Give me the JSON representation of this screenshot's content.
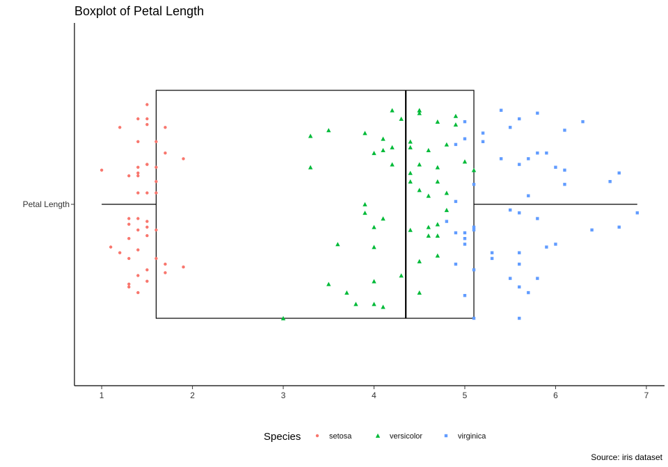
{
  "chart_data": {
    "type": "boxplot",
    "title": "Boxplot of Petal Length",
    "caption": "Source: iris dataset",
    "orientation": "horizontal",
    "y_category": "Petal Length",
    "xlabel": "",
    "ylabel": "",
    "xlim": [
      0.7,
      7.2
    ],
    "x_ticks": [
      1,
      2,
      3,
      4,
      5,
      6,
      7
    ],
    "grid": false,
    "legend": {
      "title": "Species",
      "position": "bottom",
      "items": [
        {
          "name": "setosa",
          "shape": "circle",
          "color": "#F8766D"
        },
        {
          "name": "versicolor",
          "shape": "triangle",
          "color": "#00BA38"
        },
        {
          "name": "virginica",
          "shape": "square",
          "color": "#619CFF"
        }
      ]
    },
    "box": {
      "min": 1.0,
      "q1": 1.6,
      "median": 4.35,
      "q3": 5.1,
      "max": 6.9,
      "color": "#000000"
    },
    "series": [
      {
        "name": "setosa",
        "shape": "circle",
        "color": "#F8766D",
        "points": [
          {
            "x": 1.5,
            "y": 0.35
          },
          {
            "x": 1.4,
            "y": 0.3
          },
          {
            "x": 1.5,
            "y": 0.3
          },
          {
            "x": 1.2,
            "y": 0.27
          },
          {
            "x": 1.7,
            "y": 0.27
          },
          {
            "x": 1.5,
            "y": 0.28
          },
          {
            "x": 1.4,
            "y": 0.22
          },
          {
            "x": 1.6,
            "y": 0.22
          },
          {
            "x": 1.7,
            "y": 0.18
          },
          {
            "x": 1.9,
            "y": 0.16
          },
          {
            "x": 1.4,
            "y": 0.13
          },
          {
            "x": 1.5,
            "y": 0.14
          },
          {
            "x": 1.5,
            "y": 0.14
          },
          {
            "x": 1.0,
            "y": 0.12
          },
          {
            "x": 1.3,
            "y": 0.1
          },
          {
            "x": 1.4,
            "y": 0.1
          },
          {
            "x": 1.4,
            "y": 0.11
          },
          {
            "x": 1.6,
            "y": 0.08
          },
          {
            "x": 1.5,
            "y": 0.04
          },
          {
            "x": 1.4,
            "y": 0.04
          },
          {
            "x": 1.6,
            "y": 0.04
          },
          {
            "x": 1.3,
            "y": -0.05
          },
          {
            "x": 1.4,
            "y": -0.05
          },
          {
            "x": 1.5,
            "y": -0.06
          },
          {
            "x": 1.5,
            "y": -0.08
          },
          {
            "x": 1.3,
            "y": -0.07
          },
          {
            "x": 1.4,
            "y": -0.09
          },
          {
            "x": 1.6,
            "y": -0.09
          },
          {
            "x": 1.5,
            "y": -0.11
          },
          {
            "x": 1.3,
            "y": -0.12
          },
          {
            "x": 1.1,
            "y": -0.15
          },
          {
            "x": 1.2,
            "y": -0.17
          },
          {
            "x": 1.4,
            "y": -0.16
          },
          {
            "x": 1.3,
            "y": -0.19
          },
          {
            "x": 1.6,
            "y": -0.19
          },
          {
            "x": 1.7,
            "y": -0.21
          },
          {
            "x": 1.9,
            "y": -0.22
          },
          {
            "x": 1.5,
            "y": -0.23
          },
          {
            "x": 1.4,
            "y": -0.25
          },
          {
            "x": 1.7,
            "y": -0.24
          },
          {
            "x": 1.5,
            "y": -0.27
          },
          {
            "x": 1.3,
            "y": -0.29
          },
          {
            "x": 1.3,
            "y": -0.28
          },
          {
            "x": 1.4,
            "y": -0.31
          },
          {
            "x": 1.6,
            "y": 0.13
          }
        ]
      },
      {
        "name": "versicolor",
        "shape": "triangle",
        "color": "#00BA38",
        "points": [
          {
            "x": 4.2,
            "y": 0.33
          },
          {
            "x": 4.5,
            "y": 0.33
          },
          {
            "x": 4.5,
            "y": 0.33
          },
          {
            "x": 4.3,
            "y": 0.3
          },
          {
            "x": 4.9,
            "y": 0.31
          },
          {
            "x": 4.5,
            "y": 0.32
          },
          {
            "x": 4.7,
            "y": 0.29
          },
          {
            "x": 4.9,
            "y": 0.28
          },
          {
            "x": 3.5,
            "y": 0.26
          },
          {
            "x": 3.9,
            "y": 0.25
          },
          {
            "x": 3.3,
            "y": 0.24
          },
          {
            "x": 4.1,
            "y": 0.23
          },
          {
            "x": 4.4,
            "y": 0.22
          },
          {
            "x": 4.2,
            "y": 0.2
          },
          {
            "x": 4.4,
            "y": 0.2
          },
          {
            "x": 4.6,
            "y": 0.19
          },
          {
            "x": 4.8,
            "y": 0.21
          },
          {
            "x": 4.1,
            "y": 0.19
          },
          {
            "x": 4.0,
            "y": 0.18
          },
          {
            "x": 5.0,
            "y": 0.15
          },
          {
            "x": 4.5,
            "y": 0.14
          },
          {
            "x": 4.2,
            "y": 0.14
          },
          {
            "x": 3.3,
            "y": 0.13
          },
          {
            "x": 4.7,
            "y": 0.13
          },
          {
            "x": 5.1,
            "y": 0.12
          },
          {
            "x": 4.4,
            "y": 0.11
          },
          {
            "x": 4.4,
            "y": 0.08
          },
          {
            "x": 4.7,
            "y": 0.08
          },
          {
            "x": 4.5,
            "y": 0.05
          },
          {
            "x": 4.6,
            "y": 0.03
          },
          {
            "x": 4.8,
            "y": 0.04
          },
          {
            "x": 3.9,
            "y": 0.0
          },
          {
            "x": 4.8,
            "y": -0.02
          },
          {
            "x": 3.9,
            "y": -0.03
          },
          {
            "x": 4.1,
            "y": -0.05
          },
          {
            "x": 4.0,
            "y": -0.08
          },
          {
            "x": 4.7,
            "y": -0.07
          },
          {
            "x": 4.6,
            "y": -0.08
          },
          {
            "x": 4.6,
            "y": -0.11
          },
          {
            "x": 4.7,
            "y": -0.11
          },
          {
            "x": 4.4,
            "y": -0.09
          },
          {
            "x": 3.6,
            "y": -0.14
          },
          {
            "x": 4.0,
            "y": -0.15
          },
          {
            "x": 4.5,
            "y": -0.2
          },
          {
            "x": 4.7,
            "y": -0.18
          },
          {
            "x": 4.3,
            "y": -0.25
          },
          {
            "x": 3.5,
            "y": -0.28
          },
          {
            "x": 4.0,
            "y": -0.27
          },
          {
            "x": 3.7,
            "y": -0.31
          },
          {
            "x": 4.5,
            "y": -0.31
          },
          {
            "x": 3.8,
            "y": -0.35
          },
          {
            "x": 4.0,
            "y": -0.35
          },
          {
            "x": 4.1,
            "y": -0.36
          },
          {
            "x": 3.0,
            "y": -0.4
          }
        ]
      },
      {
        "name": "virginica",
        "shape": "square",
        "color": "#619CFF",
        "points": [
          {
            "x": 5.4,
            "y": 0.33
          },
          {
            "x": 5.8,
            "y": 0.32
          },
          {
            "x": 5.6,
            "y": 0.3
          },
          {
            "x": 6.3,
            "y": 0.29
          },
          {
            "x": 5.0,
            "y": 0.29
          },
          {
            "x": 5.5,
            "y": 0.27
          },
          {
            "x": 6.1,
            "y": 0.26
          },
          {
            "x": 5.2,
            "y": 0.25
          },
          {
            "x": 5.0,
            "y": 0.23
          },
          {
            "x": 5.2,
            "y": 0.22
          },
          {
            "x": 4.9,
            "y": 0.21
          },
          {
            "x": 5.9,
            "y": 0.18
          },
          {
            "x": 5.8,
            "y": 0.18
          },
          {
            "x": 5.4,
            "y": 0.16
          },
          {
            "x": 5.7,
            "y": 0.16
          },
          {
            "x": 5.6,
            "y": 0.14
          },
          {
            "x": 6.0,
            "y": 0.13
          },
          {
            "x": 6.1,
            "y": 0.12
          },
          {
            "x": 6.7,
            "y": 0.11
          },
          {
            "x": 6.6,
            "y": 0.08
          },
          {
            "x": 5.1,
            "y": 0.07
          },
          {
            "x": 6.1,
            "y": 0.07
          },
          {
            "x": 5.7,
            "y": 0.03
          },
          {
            "x": 4.9,
            "y": 0.01
          },
          {
            "x": 5.5,
            "y": -0.02
          },
          {
            "x": 5.6,
            "y": -0.03
          },
          {
            "x": 6.9,
            "y": -0.03
          },
          {
            "x": 5.8,
            "y": -0.05
          },
          {
            "x": 4.8,
            "y": -0.06
          },
          {
            "x": 5.1,
            "y": -0.08
          },
          {
            "x": 6.4,
            "y": -0.09
          },
          {
            "x": 6.7,
            "y": -0.08
          },
          {
            "x": 5.1,
            "y": -0.09
          },
          {
            "x": 4.9,
            "y": -0.1
          },
          {
            "x": 5.0,
            "y": -0.1
          },
          {
            "x": 5.0,
            "y": -0.12
          },
          {
            "x": 5.0,
            "y": -0.14
          },
          {
            "x": 6.0,
            "y": -0.14
          },
          {
            "x": 5.9,
            "y": -0.15
          },
          {
            "x": 5.3,
            "y": -0.17
          },
          {
            "x": 5.6,
            "y": -0.17
          },
          {
            "x": 5.3,
            "y": -0.19
          },
          {
            "x": 5.6,
            "y": -0.21
          },
          {
            "x": 4.9,
            "y": -0.21
          },
          {
            "x": 5.1,
            "y": -0.23
          },
          {
            "x": 5.5,
            "y": -0.26
          },
          {
            "x": 5.8,
            "y": -0.26
          },
          {
            "x": 5.6,
            "y": -0.29
          },
          {
            "x": 5.7,
            "y": -0.31
          },
          {
            "x": 5.0,
            "y": -0.32
          },
          {
            "x": 5.1,
            "y": -0.4
          },
          {
            "x": 5.6,
            "y": -0.4
          }
        ]
      }
    ]
  }
}
